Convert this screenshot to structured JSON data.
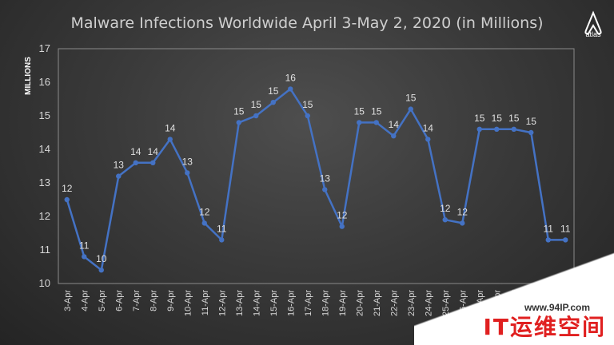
{
  "chart_data": {
    "type": "line",
    "title": "Malware Infections Worldwide April 3-May 2, 2020 (in Millions)",
    "ylabel": "MILLIONS",
    "xlabel": "",
    "ylim": [
      10,
      17
    ],
    "yticks": [
      10,
      11,
      12,
      13,
      14,
      15,
      16,
      17
    ],
    "grid": false,
    "categories": [
      "3-Apr",
      "4-Apr",
      "5-Apr",
      "6-Apr",
      "7-Apr",
      "8-Apr",
      "9-Apr",
      "10-Apr",
      "11-Apr",
      "12-Apr",
      "13-Apr",
      "14-Apr",
      "15-Apr",
      "16-Apr",
      "17-Apr",
      "18-Apr",
      "19-Apr",
      "20-Apr",
      "21-Apr",
      "22-Apr",
      "23-Apr",
      "24-Apr",
      "25-Apr",
      "26-Apr",
      "27-Apr",
      "28-Apr",
      "29-Apr",
      "30-Apr",
      "1-May",
      "2-May"
    ],
    "series": [
      {
        "values": [
          12.5,
          10.8,
          10.4,
          13.2,
          13.6,
          13.6,
          14.3,
          13.3,
          11.8,
          11.3,
          14.8,
          15.0,
          15.4,
          15.8,
          15.0,
          12.8,
          11.7,
          14.8,
          14.8,
          14.4,
          15.2,
          14.3,
          11.9,
          11.8,
          14.6,
          14.6,
          14.6,
          14.5,
          11.3,
          11.3
        ],
        "labels": [
          "12",
          "11",
          "10",
          "13",
          "14",
          "14",
          "14",
          "13",
          "12",
          "11",
          "15",
          "15",
          "15",
          "16",
          "15",
          "13",
          "12",
          "15",
          "15",
          "14",
          "15",
          "14",
          "12",
          "12",
          "15",
          "15",
          "15",
          "15",
          "11",
          "11"
        ],
        "color": "#4472c4"
      }
    ]
  },
  "logo": {
    "text": "atlas"
  },
  "watermark": {
    "url": "www.94IP.com",
    "brand": "IT运维空间"
  }
}
